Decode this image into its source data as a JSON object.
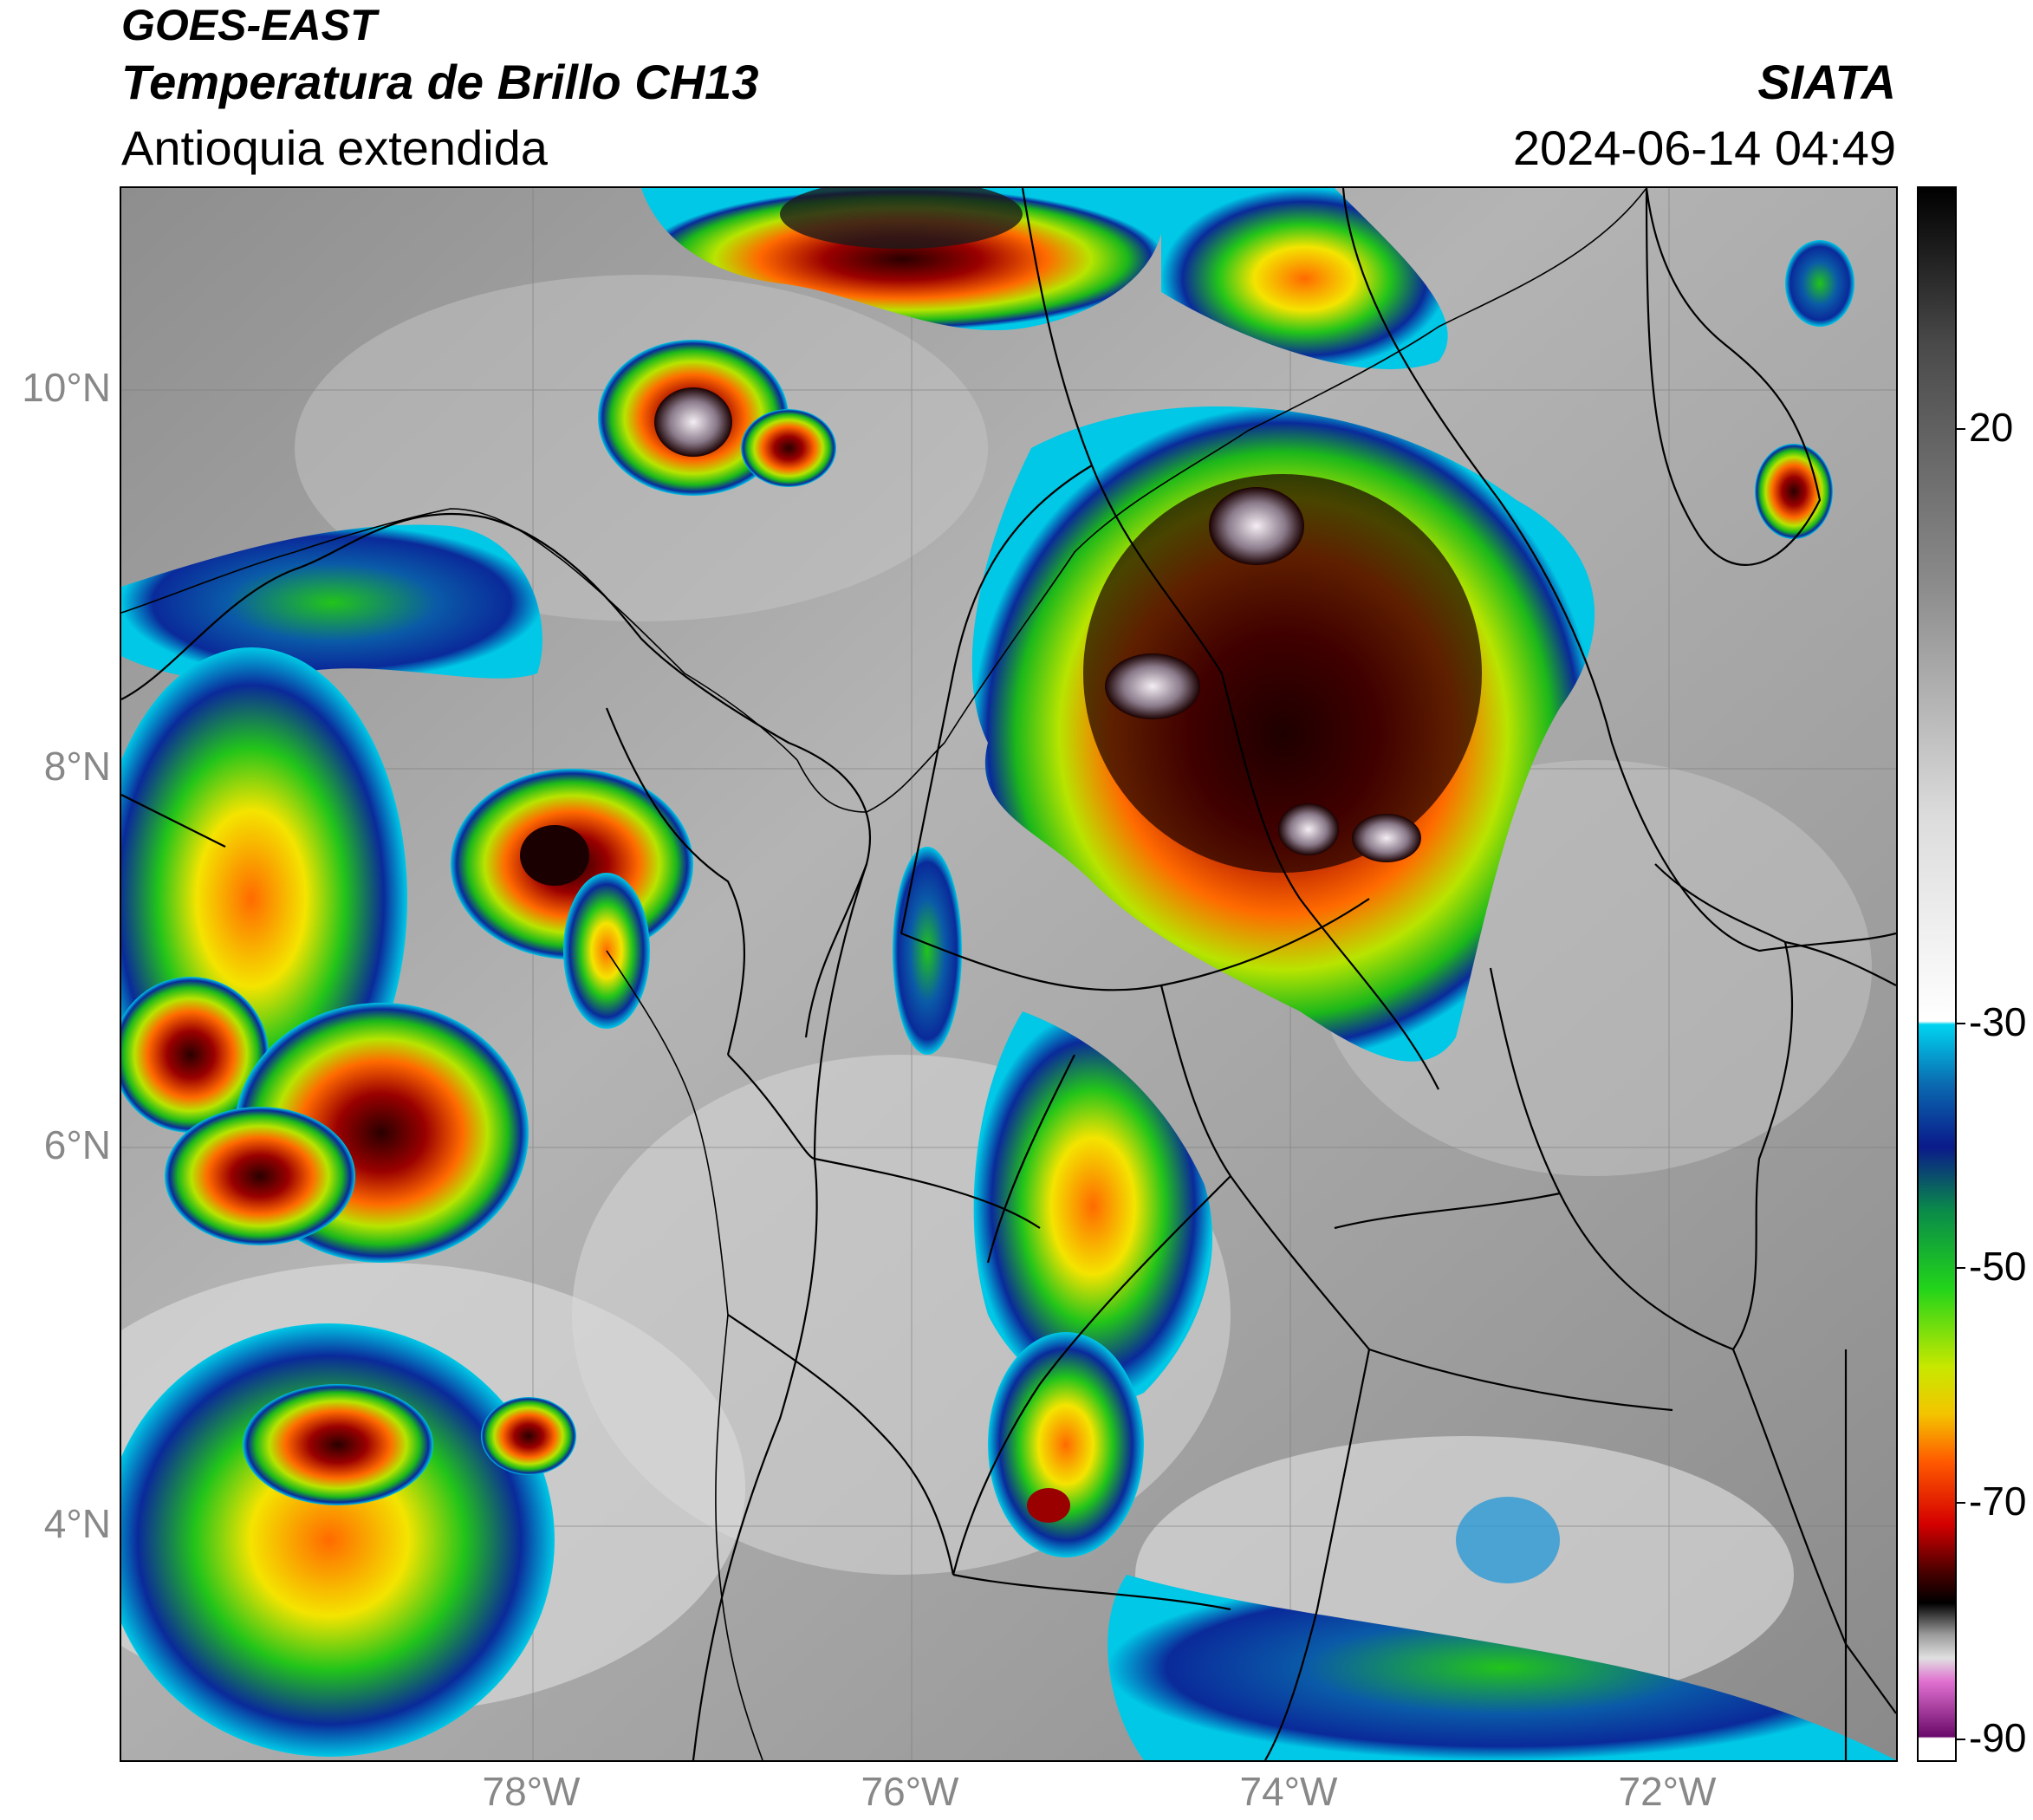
{
  "header": {
    "satellite": "GOES-EAST",
    "product": "Temperatura de Brillo CH13",
    "region": "Antioquia extendida",
    "organization": "SIATA",
    "timestamp": "2024-06-14 04:49"
  },
  "axes": {
    "lat_ticks": [
      "10°N",
      "8°N",
      "6°N",
      "4°N"
    ],
    "lon_ticks": [
      "78°W",
      "76°W",
      "74°W",
      "72°W"
    ]
  },
  "colorbar": {
    "ticks": [
      "20",
      "-30",
      "-50",
      "-70",
      "-90"
    ],
    "min": -92,
    "max": 35
  },
  "colors": {
    "grey_bg": "#9a9a9a",
    "cyan": "#00c8e6",
    "blue": "#0a2a9a",
    "green": "#22c41a",
    "yellow": "#f4e400",
    "orange": "#ff7a00",
    "red": "#d40000",
    "dark_red": "#3a0000",
    "black": "#000000",
    "pink": "#e070d0",
    "purple": "#7a0a7a"
  }
}
